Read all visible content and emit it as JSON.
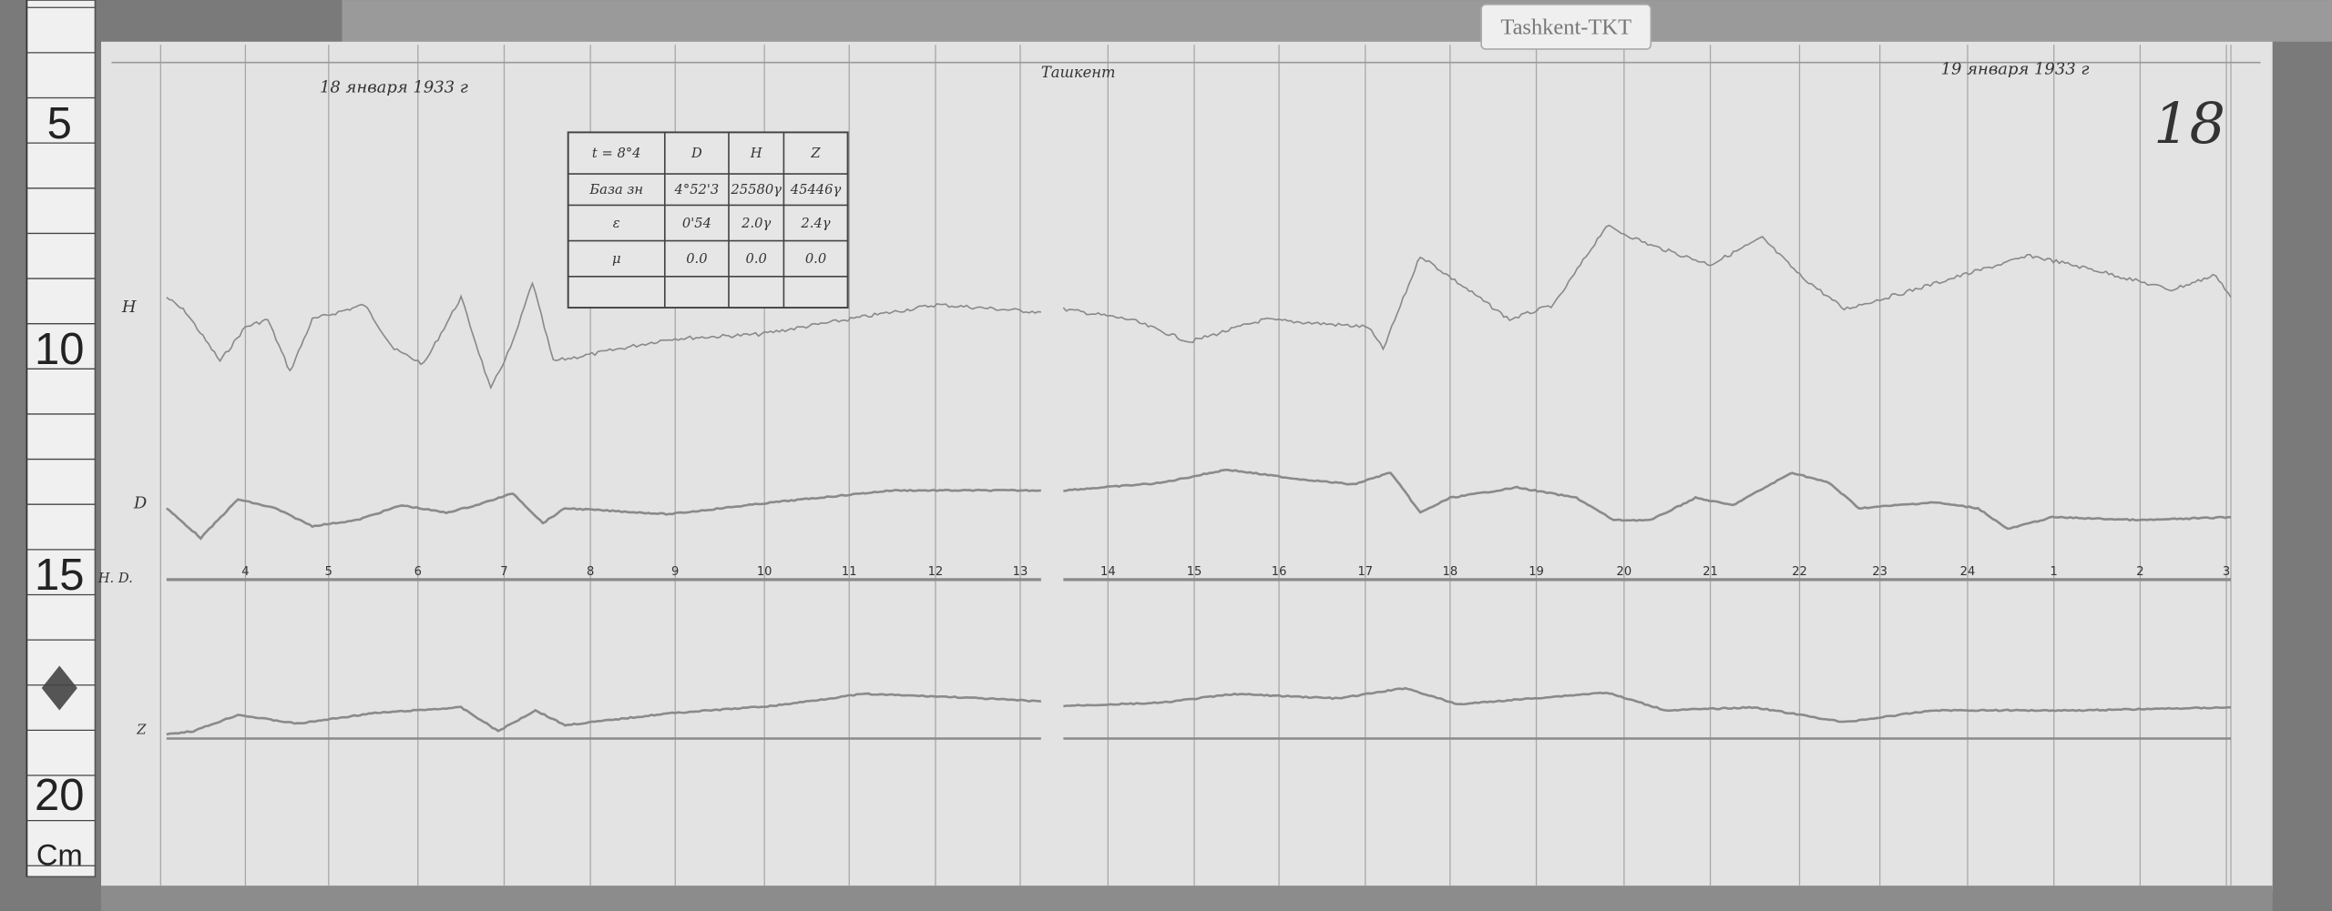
{
  "label_tag": "Tashkent-TKT",
  "sheet_number": "18",
  "date_left": "18 января 1933 г",
  "date_right": "19 января 1933 г",
  "header_center": "Ташкент",
  "ruler": {
    "marks": [
      "5",
      "10",
      "15",
      "20"
    ],
    "unit": "Cm"
  },
  "trace_labels": {
    "H": "H",
    "D": "D",
    "HD": "H. D.",
    "Z": "Z"
  },
  "hour_ticks": [
    "4",
    "5",
    "6",
    "7",
    "8",
    "9",
    "10",
    "11",
    "12",
    "13",
    "14",
    "15",
    "16",
    "17",
    "18",
    "19",
    "20",
    "21",
    "22",
    "23",
    "24",
    "1",
    "2",
    "3"
  ],
  "constants_table": {
    "header": [
      "t = 8°4",
      "D",
      "H",
      "Z"
    ],
    "rows": [
      [
        "База зн",
        "4°52'3",
        "25580γ",
        "45446γ"
      ],
      [
        "ε",
        "0'54",
        "2.0γ",
        "2.4γ"
      ],
      [
        "μ",
        "0.0",
        "0.0",
        "0.0"
      ],
      [
        "",
        "",
        "",
        ""
      ]
    ]
  },
  "colors": {
    "paper": "#e4e4e4",
    "trace": "#8a8a8a",
    "grid": "#a8a8a8",
    "background": "#6f6f6f"
  }
}
